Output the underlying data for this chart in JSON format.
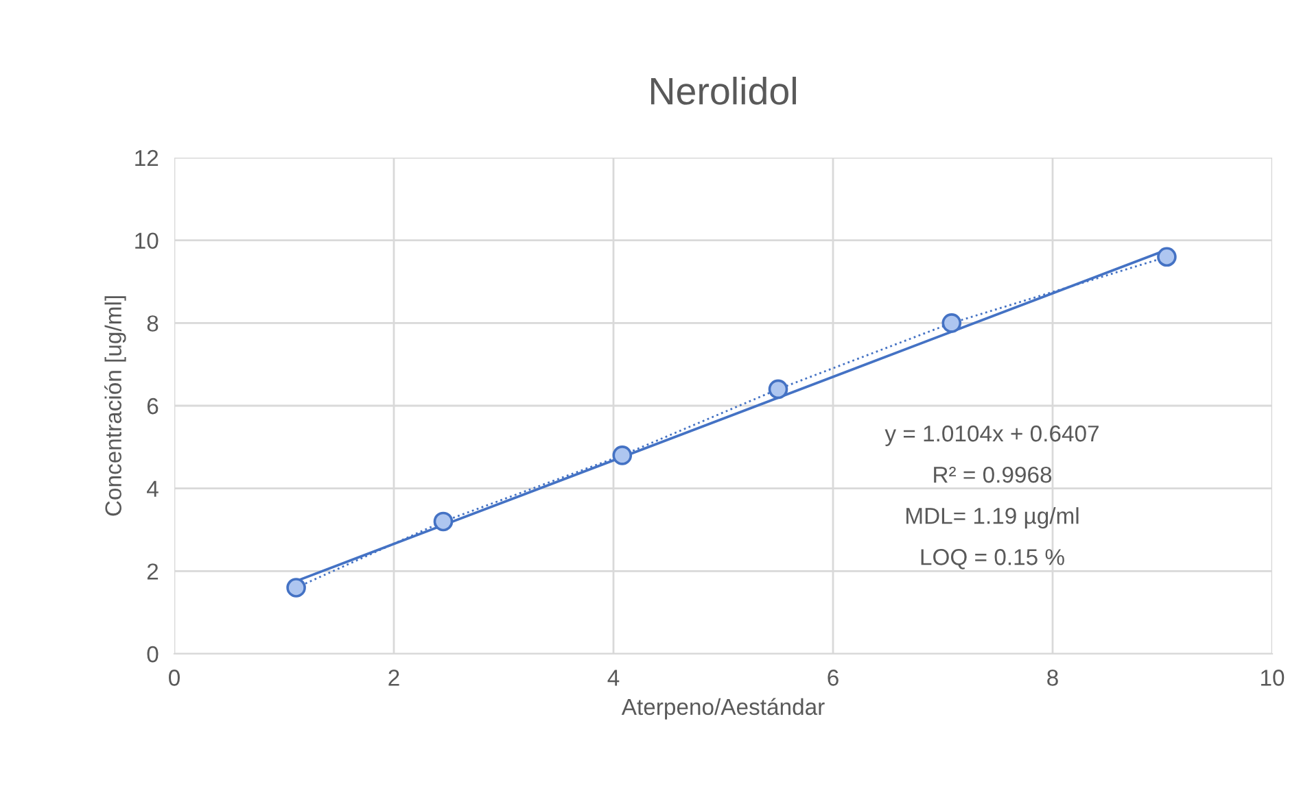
{
  "chart_data": {
    "type": "line",
    "title": "Nerolidol",
    "xlabel": "Aterpeno/Aestándar",
    "ylabel": "Concentración [ug/ml]",
    "x": [
      1.11,
      2.45,
      4.08,
      5.5,
      7.08,
      9.04
    ],
    "series": [
      {
        "color": "#4472c4",
        "values": [
          1.6,
          3.2,
          4.8,
          6.4,
          8.0,
          9.6
        ],
        "marker": "circle",
        "line_style": "dotted"
      },
      {
        "color": "#4472c4",
        "x": [
          1.11,
          9.04
        ],
        "values": [
          1.76,
          9.77
        ],
        "line_style": "solid",
        "marker": "none"
      }
    ],
    "annotations": [
      "y = 1.0104x + 0.6407",
      "R² = 0.9968",
      "MDL= 1.19 µg/ml",
      "LOQ = 0.15 %"
    ],
    "xlim": [
      0,
      10
    ],
    "xticks": [
      0,
      2,
      4,
      6,
      8,
      10
    ],
    "ylim": [
      0,
      12
    ],
    "yticks": [
      0,
      2,
      4,
      6,
      8,
      10,
      12
    ],
    "grid": true,
    "legend": false
  }
}
